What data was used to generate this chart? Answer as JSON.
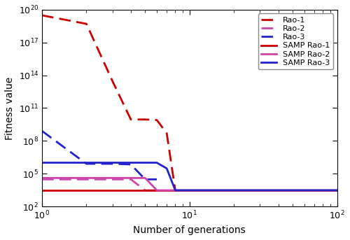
{
  "title": "",
  "xlabel": "Number of generations",
  "ylabel": "Fitness value",
  "xlim": [
    1,
    100
  ],
  "ylim": [
    100.0,
    1e+20
  ],
  "series": {
    "Rao-1": {
      "x": [
        1,
        2,
        3,
        4,
        5,
        6,
        7,
        8
      ],
      "y": [
        3e+19,
        5e+18,
        30000000000000.0,
        9000000000.0,
        9000000000.0,
        8000000000.0,
        500000000.0,
        3000.0
      ],
      "color": "#cc0000",
      "linestyle": "--",
      "linewidth": 2.0,
      "dashes": [
        6,
        3
      ]
    },
    "Rao-2": {
      "x": [
        1,
        2,
        3,
        4,
        5,
        6
      ],
      "y": [
        30000.0,
        30000.0,
        30000.0,
        30000.0,
        3000.0,
        3000.0
      ],
      "color": "#cc44aa",
      "linestyle": "--",
      "linewidth": 2.0,
      "dashes": [
        6,
        3
      ]
    },
    "Rao-3": {
      "x": [
        1,
        2,
        3,
        4,
        5,
        6
      ],
      "y": [
        800000000.0,
        800000.0,
        800000.0,
        700000.0,
        30000.0,
        30000.0
      ],
      "color": "#2222cc",
      "linestyle": "--",
      "linewidth": 2.0,
      "dashes": [
        6,
        3
      ]
    },
    "SAMP Rao-1": {
      "x": [
        1,
        100
      ],
      "y": [
        3000.0,
        3000.0
      ],
      "color": "#cc0000",
      "linestyle": "-",
      "linewidth": 2.0,
      "dashes": null
    },
    "SAMP Rao-2": {
      "x": [
        1,
        2,
        3,
        4,
        5,
        6,
        7,
        8,
        100
      ],
      "y": [
        40000.0,
        40000.0,
        40000.0,
        40000.0,
        40000.0,
        3000.0,
        3000.0,
        3000.0,
        3000.0
      ],
      "color": "#cc44aa",
      "linestyle": "-",
      "linewidth": 2.0,
      "dashes": null
    },
    "SAMP Rao-3": {
      "x": [
        1,
        2,
        3,
        4,
        5,
        6,
        7,
        8,
        100
      ],
      "y": [
        1000000.0,
        1000000.0,
        1000000.0,
        1000000.0,
        1000000.0,
        1000000.0,
        300000.0,
        3000.0,
        3000.0
      ],
      "color": "#2222cc",
      "linestyle": "-",
      "linewidth": 2.0,
      "dashes": null
    }
  },
  "background_color": "#ffffff",
  "legend_fontsize": 8,
  "axis_fontsize": 10,
  "tick_fontsize": 9
}
